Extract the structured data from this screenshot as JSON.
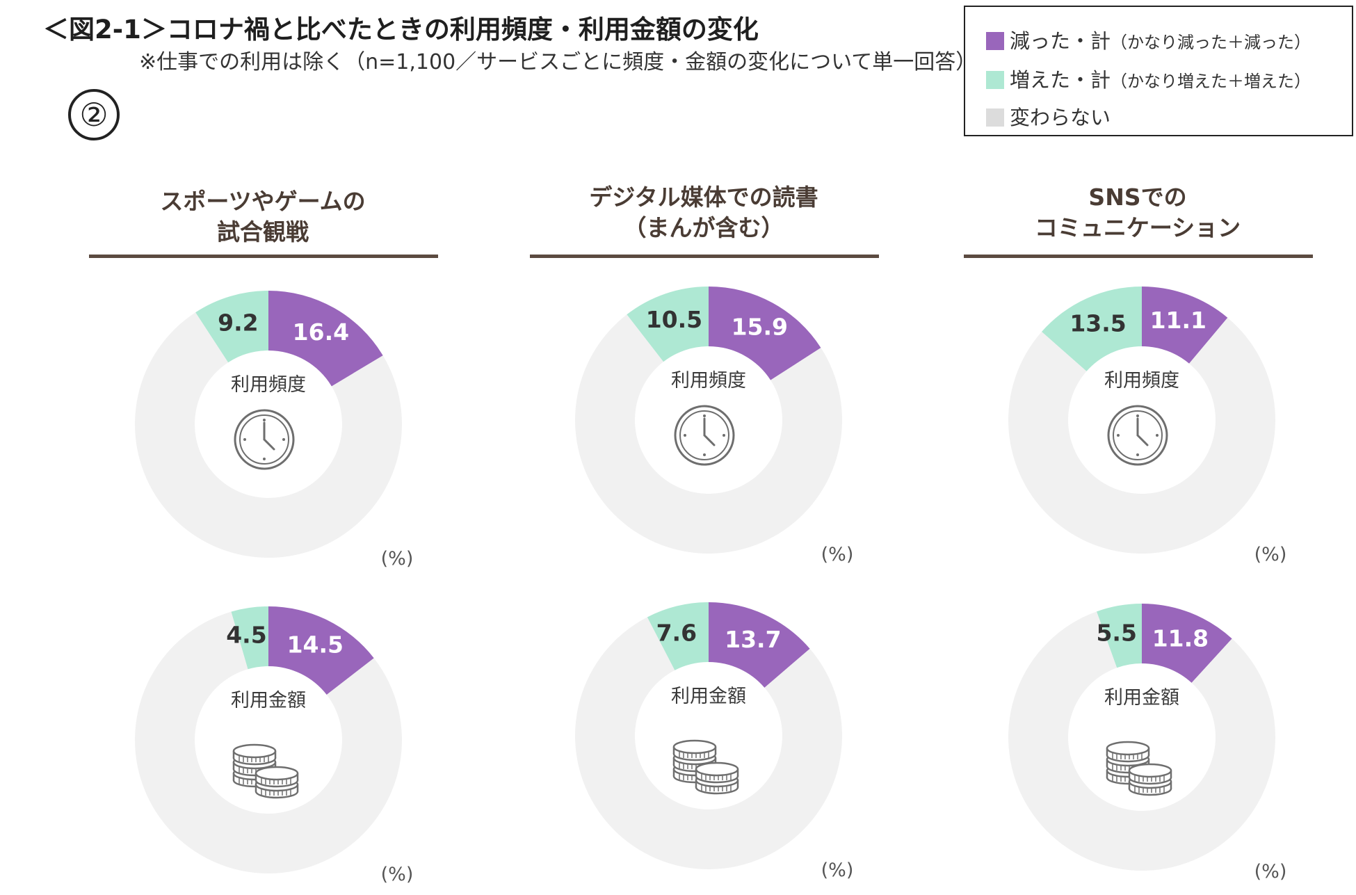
{
  "title": "＜図2-1＞コロナ禍と比べたときの利用頻度・利用金額の変化",
  "subtitle": "※仕事での利用は除く（n=1,100／サービスごとに頻度・金額の変化について単一回答）",
  "panel_marker": "②",
  "legend": [
    {
      "label": "減った・計",
      "sub": "（かなり減った＋減った）",
      "color": "#9966bb"
    },
    {
      "label": "増えた・計",
      "sub": "（かなり増えた＋増えた）",
      "color": "#aee8d3"
    },
    {
      "label": "変わらない",
      "sub": "",
      "color": "#dcdcdc"
    }
  ],
  "columns": [
    {
      "line1": "スポーツやゲームの",
      "line2": "試合観戦"
    },
    {
      "line1": "デジタル媒体での読書",
      "line2": "（まんが含む）"
    },
    {
      "line1": "SNSでの",
      "line2": "コミュニケーション"
    }
  ],
  "chart_data": [
    {
      "type": "pie",
      "column": "スポーツやゲームの試合観戦",
      "center_label": "利用頻度",
      "icon": "clock-icon",
      "unit": "(%)",
      "categories": [
        "減った・計",
        "増えた・計",
        "変わらない"
      ],
      "values": [
        16.4,
        9.2,
        74.4
      ]
    },
    {
      "type": "pie",
      "column": "デジタル媒体での読書（まんが含む）",
      "center_label": "利用頻度",
      "icon": "clock-icon",
      "unit": "(%)",
      "categories": [
        "減った・計",
        "増えた・計",
        "変わらない"
      ],
      "values": [
        15.9,
        10.5,
        73.6
      ]
    },
    {
      "type": "pie",
      "column": "SNSでのコミュニケーション",
      "center_label": "利用頻度",
      "icon": "clock-icon",
      "unit": "(%)",
      "categories": [
        "減った・計",
        "増えた・計",
        "変わらない"
      ],
      "values": [
        11.1,
        13.5,
        75.4
      ]
    },
    {
      "type": "pie",
      "column": "スポーツやゲームの試合観戦",
      "center_label": "利用金額",
      "icon": "coins-icon",
      "unit": "(%)",
      "categories": [
        "減った・計",
        "増えた・計",
        "変わらない"
      ],
      "values": [
        14.5,
        4.5,
        81.0
      ]
    },
    {
      "type": "pie",
      "column": "デジタル媒体での読書（まんが含む）",
      "center_label": "利用金額",
      "icon": "coins-icon",
      "unit": "(%)",
      "categories": [
        "減った・計",
        "増えた・計",
        "変わらない"
      ],
      "values": [
        13.7,
        7.6,
        78.7
      ]
    },
    {
      "type": "pie",
      "column": "SNSでのコミュニケーション",
      "center_label": "利用金額",
      "icon": "coins-icon",
      "unit": "(%)",
      "categories": [
        "減った・計",
        "増えた・計",
        "変わらない"
      ],
      "values": [
        11.8,
        5.5,
        82.7
      ]
    }
  ]
}
